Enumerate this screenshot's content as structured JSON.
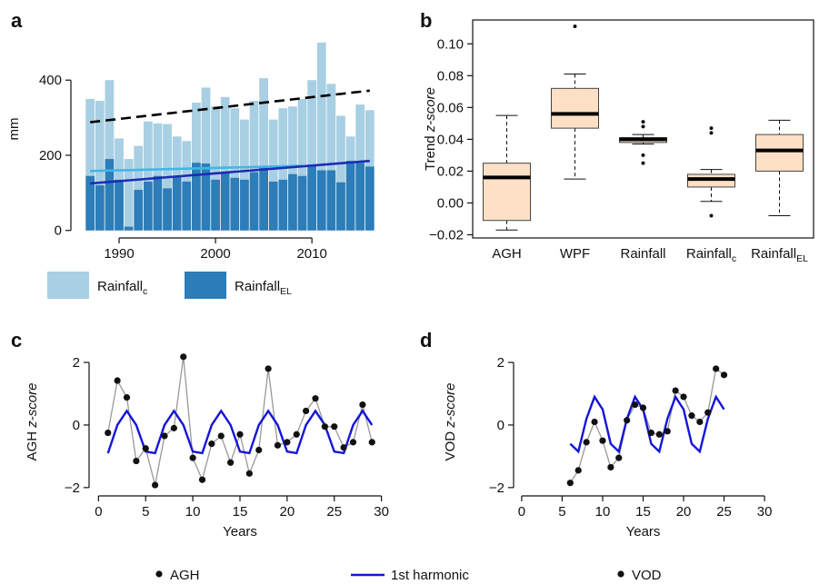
{
  "panel_letters": [
    "a",
    "b",
    "c",
    "d"
  ],
  "chart_data": [
    {
      "panel": "a",
      "type": "bar",
      "x": [
        1987,
        1988,
        1989,
        1990,
        1991,
        1992,
        1993,
        1994,
        1995,
        1996,
        1997,
        1998,
        1999,
        2000,
        2001,
        2002,
        2003,
        2004,
        2005,
        2006,
        2007,
        2008,
        2009,
        2010,
        2011,
        2012,
        2013,
        2014,
        2015,
        2016
      ],
      "series": [
        {
          "name": "Rainfall",
          "name_sub": "c",
          "color": "#a8cfe3",
          "values": [
            350,
            345,
            400,
            245,
            190,
            225,
            290,
            285,
            283,
            250,
            238,
            340,
            380,
            330,
            355,
            325,
            295,
            345,
            405,
            295,
            325,
            330,
            350,
            400,
            500,
            390,
            305,
            250,
            335,
            320
          ]
        },
        {
          "name": "Rainfall",
          "name_sub": "EL",
          "color": "#2c7db8",
          "values": [
            145,
            120,
            190,
            135,
            10,
            108,
            130,
            145,
            112,
            145,
            130,
            180,
            178,
            135,
            152,
            140,
            135,
            155,
            170,
            130,
            135,
            150,
            145,
            175,
            160,
            160,
            128,
            185,
            180,
            170
          ]
        }
      ],
      "trend_lines": [
        {
          "style": "dashed",
          "color": "#000000",
          "x": [
            1987,
            2016
          ],
          "y": [
            288,
            372
          ]
        },
        {
          "style": "solid",
          "color": "#41b6e6",
          "x": [
            1987,
            2009
          ],
          "y": [
            158,
            172
          ]
        },
        {
          "style": "solid",
          "color": "#1d2bb5",
          "x": [
            1987,
            2016
          ],
          "y": [
            125,
            185
          ]
        }
      ],
      "ylabel": "mm",
      "yticks": [
        0,
        200,
        400
      ],
      "xticks": [
        1990,
        2000,
        2010
      ],
      "ylim": [
        -20,
        560
      ],
      "xlim": [
        1985,
        2018
      ],
      "legend": [
        {
          "label": "Rainfall",
          "sub": "c",
          "color": "#a8cfe3"
        },
        {
          "label": "Rainfall",
          "sub": "EL",
          "color": "#2c7db8"
        }
      ]
    },
    {
      "panel": "b",
      "type": "box",
      "categories": [
        {
          "label": "AGH",
          "sub": ""
        },
        {
          "label": "WPF",
          "sub": ""
        },
        {
          "label": "Rainfall",
          "sub": ""
        },
        {
          "label": "Rainfall",
          "sub": "c"
        },
        {
          "label": "Rainfall",
          "sub": "EL"
        }
      ],
      "boxes": [
        {
          "whisker_low": -0.017,
          "q1": -0.011,
          "median": 0.016,
          "q3": 0.025,
          "whisker_high": 0.055,
          "outliers": []
        },
        {
          "whisker_low": 0.015,
          "q1": 0.047,
          "median": 0.056,
          "q3": 0.072,
          "whisker_high": 0.081,
          "outliers": [
            0.111
          ]
        },
        {
          "whisker_low": 0.037,
          "q1": 0.038,
          "median": 0.04,
          "q3": 0.041,
          "whisker_high": 0.043,
          "outliers": [
            0.051,
            0.048,
            0.03,
            0.025
          ]
        },
        {
          "whisker_low": 0.001,
          "q1": 0.01,
          "median": 0.015,
          "q3": 0.018,
          "whisker_high": 0.021,
          "outliers": [
            0.047,
            0.044,
            -0.008
          ]
        },
        {
          "whisker_low": -0.008,
          "q1": 0.02,
          "median": 0.033,
          "q3": 0.043,
          "whisker_high": 0.052,
          "outliers": []
        }
      ],
      "ylabel": "Trend",
      "ylabel_italic": "z-score",
      "yticks": [
        -0.02,
        0.0,
        0.02,
        0.04,
        0.06,
        0.08,
        0.1
      ],
      "ytick_labels": [
        "−0.02",
        "0.00",
        "0.02",
        "0.04",
        "0.06",
        "0.08",
        "0.10"
      ],
      "ylim": [
        -0.022,
        0.115
      ],
      "box_color": "#fde0c5"
    },
    {
      "panel": "c",
      "type": "line",
      "x": [
        1,
        2,
        3,
        4,
        5,
        6,
        7,
        8,
        9,
        10,
        11,
        12,
        13,
        14,
        15,
        16,
        17,
        18,
        19,
        20,
        21,
        22,
        23,
        24,
        25,
        26,
        27,
        28,
        29
      ],
      "series": [
        {
          "name": "AGH",
          "marker": "dot",
          "color": "#999999",
          "values": [
            -0.25,
            1.42,
            0.88,
            -1.15,
            -0.75,
            -1.92,
            -0.35,
            -0.1,
            2.18,
            -1.05,
            -1.75,
            -0.6,
            -0.35,
            -1.2,
            -0.3,
            -1.55,
            -0.8,
            1.8,
            -0.65,
            -0.55,
            -0.3,
            0.45,
            0.85,
            -0.05,
            -0.05,
            -0.72,
            -0.55,
            0.65,
            -0.55
          ]
        },
        {
          "name": "1st harmonic",
          "color": "#1515d6",
          "values": [
            -0.9,
            0.0,
            0.45,
            0.0,
            -0.85,
            -0.9,
            0.0,
            0.45,
            0.0,
            -0.85,
            -0.9,
            0.0,
            0.45,
            0.0,
            -0.85,
            -0.9,
            0.0,
            0.45,
            0.0,
            -0.85,
            -0.9,
            0.0,
            0.45,
            0.0,
            -0.85,
            -0.9,
            0.0,
            0.45,
            0.0
          ]
        }
      ],
      "xlabel": "Years",
      "ylabel": "AGH",
      "ylabel_italic": "z-score",
      "xticks": [
        0,
        5,
        10,
        15,
        20,
        25,
        30
      ],
      "yticks": [
        -2,
        0,
        2
      ],
      "xlim": [
        -1,
        31
      ],
      "ylim": [
        -2.15,
        2.35
      ]
    },
    {
      "panel": "d",
      "type": "line",
      "x": [
        6,
        7,
        8,
        9,
        10,
        11,
        12,
        13,
        14,
        15,
        16,
        17,
        18,
        19,
        20,
        21,
        22,
        23,
        24,
        25
      ],
      "series": [
        {
          "name": "VOD",
          "marker": "dot",
          "color": "#999999",
          "values": [
            -1.85,
            -1.45,
            -0.55,
            0.1,
            -0.5,
            -1.35,
            -1.05,
            0.15,
            0.65,
            0.55,
            -0.25,
            -0.3,
            -0.2,
            1.1,
            0.9,
            0.3,
            0.1,
            0.4,
            1.8,
            1.6
          ]
        },
        {
          "name": "1st harmonic",
          "color": "#1515d6",
          "values": [
            -0.6,
            -0.85,
            0.2,
            0.9,
            0.5,
            -0.6,
            -0.85,
            0.2,
            0.9,
            0.5,
            -0.6,
            -0.85,
            0.2,
            0.9,
            0.5,
            -0.6,
            -0.85,
            0.2,
            0.9,
            0.5
          ]
        }
      ],
      "xlabel": "Years",
      "ylabel": "VOD",
      "ylabel_italic": "z-score",
      "xticks": [
        0,
        5,
        10,
        15,
        20,
        25,
        30
      ],
      "yticks": [
        -2,
        0,
        2
      ],
      "xlim": [
        -1,
        31
      ],
      "ylim": [
        -2.15,
        2.35
      ]
    }
  ],
  "bottom_legend": [
    {
      "label": "AGH",
      "kind": "dot"
    },
    {
      "label": "1st harmonic",
      "kind": "line",
      "color": "#1515d6"
    },
    {
      "label": "VOD",
      "kind": "dot"
    }
  ]
}
